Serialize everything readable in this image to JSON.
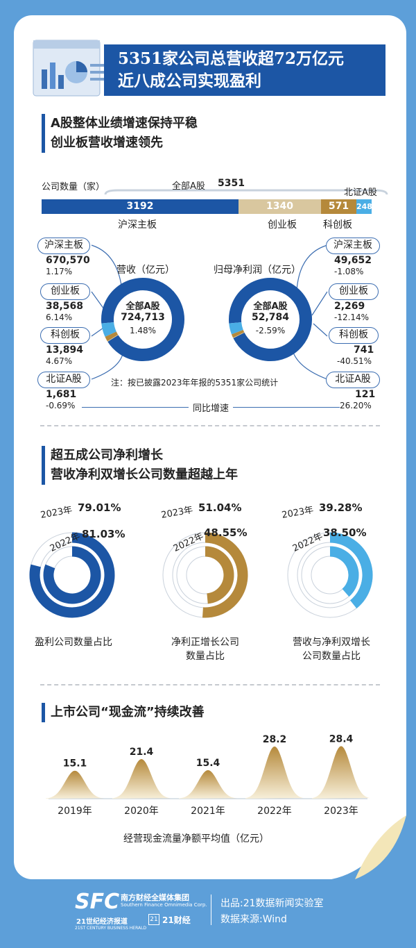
{
  "header": {
    "line1": "5351家公司总营收超72万亿元",
    "line2": "近八成公司实现盈利"
  },
  "section1": {
    "title1": "A股整体业绩增速保持平稳",
    "title2": "创业板营收增速领先"
  },
  "count": {
    "label": "公司数量（家）",
    "total_label": "全部A股",
    "total": "5351",
    "bse_label": "北证A股",
    "segments": [
      {
        "name": "沪深主板",
        "value": 3192,
        "color": "#1c56a5"
      },
      {
        "name": "创业板",
        "value": 1340,
        "color": "#d9c79f"
      },
      {
        "name": "科创板",
        "value": 571,
        "color": "#b5893b"
      },
      {
        "name": "北证A股",
        "value": 248,
        "color": "#4aaee5"
      }
    ]
  },
  "revenue": {
    "title": "营收（亿元）",
    "center_label": "全部A股",
    "center_value": "724,713",
    "center_growth": "1.48%",
    "items": [
      {
        "name": "沪深主板",
        "value": "670,570",
        "growth": "1.17%"
      },
      {
        "name": "创业板",
        "value": "38,568",
        "growth": "6.14%"
      },
      {
        "name": "科创板",
        "value": "13,894",
        "growth": "4.67%"
      },
      {
        "name": "北证A股",
        "value": "1,681",
        "growth": "-0.69%"
      }
    ]
  },
  "profit": {
    "title": "归母净利润（亿元）",
    "center_label": "全部A股",
    "center_value": "52,784",
    "center_growth": "-2.59%",
    "items": [
      {
        "name": "沪深主板",
        "value": "49,652",
        "growth": "-1.08%"
      },
      {
        "name": "创业板",
        "value": "2,269",
        "growth": "-12.14%"
      },
      {
        "name": "科创板",
        "value": "741",
        "growth": "-40.51%"
      },
      {
        "name": "北证A股",
        "value": "121",
        "growth": "26.20%"
      }
    ]
  },
  "note": "注：按已披露2023年年报的5351家公司统计",
  "yoy_label": "同比增速",
  "section2": {
    "title1": "超五成公司净利增长",
    "title2": "营收净利双增长公司数量超越上年"
  },
  "rings": [
    {
      "color": "#1c56a5",
      "y2023": "2023年",
      "v2023": "79.01%",
      "y2022": "2022年",
      "v2022": "81.03%",
      "caption": [
        "盈利公司数量占比"
      ]
    },
    {
      "color": "#b5893b",
      "y2023": "2023年",
      "v2023": "51.04%",
      "y2022": "2022年",
      "v2022": "48.55%",
      "caption": [
        "净利正增长公司",
        "数量占比"
      ]
    },
    {
      "color": "#4aaee5",
      "y2023": "2023年",
      "v2023": "39.28%",
      "y2022": "2022年",
      "v2022": "38.50%",
      "caption": [
        "营收与净利双增长",
        "公司数量占比"
      ]
    }
  ],
  "section3": {
    "title": "上市公司“现金流”持续改善"
  },
  "chart_data": {
    "type": "area",
    "categories": [
      "2019年",
      "2020年",
      "2021年",
      "2022年",
      "2023年"
    ],
    "values": [
      15.1,
      21.4,
      15.4,
      28.2,
      28.4
    ],
    "xlabel": "经营现金流量净额平均值（亿元）"
  },
  "footer": {
    "brand": "SFC",
    "group_cn": "南方财经全媒体集团",
    "group_en": "Southern Finance Omnimedia Corp.",
    "paper": "21世纪经济报道",
    "paper_en": "21ST CENTURY BUSINESS HERALD",
    "app": "21财经",
    "producer": "出品:21数据新闻实验室",
    "source": "数据来源:Wind"
  }
}
